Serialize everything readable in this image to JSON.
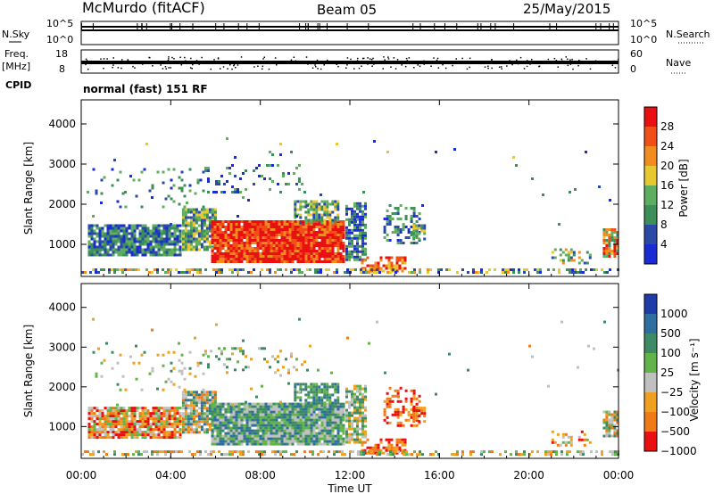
{
  "header": {
    "station": "McMurdo (fitACF)",
    "beam": "Beam 05",
    "date": "25/May/2015"
  },
  "top_panels": {
    "nsky_label": "N.Sky",
    "nsky_top": "10^5",
    "nsky_bottom": "10^0",
    "nsearch_label": "N.Search",
    "nsearch_top": "10^5",
    "nsearch_bottom": "10^0",
    "freq_label": "Freq.",
    "freq_unit": "[MHz]",
    "freq_top": "18",
    "freq_bottom": "8",
    "nave_label": "Nave",
    "nave_top": "60",
    "nave_bottom": "0",
    "cpid_label": "CPID",
    "cpid_value": "normal (fast) 151 RF"
  },
  "colors": {
    "power": [
      "#1a2bd4",
      "#2b4aa8",
      "#3c8f58",
      "#5fae5f",
      "#e8c830",
      "#f08c20",
      "#f05018",
      "#e81010"
    ],
    "velocity": [
      "#1e3ca8",
      "#2e6fa0",
      "#3f8a66",
      "#62b44a",
      "#c0c0c0",
      "#f0a020",
      "#f07a18",
      "#e81010"
    ]
  },
  "chart_data": [
    {
      "type": "heatmap",
      "panel": "power",
      "ylabel": "Slant Range [km]",
      "xlabel": "",
      "x_ticks": [
        "00:00",
        "04:00",
        "08:00",
        "12:00",
        "16:00",
        "20:00",
        "00:00"
      ],
      "xlim": [
        0,
        24
      ],
      "y_ticks": [
        1000,
        2000,
        3000,
        4000
      ],
      "ylim": [
        200,
        4600
      ],
      "colorbar": {
        "label": "Power [dB]",
        "ticks": [
          "4",
          "8",
          "12",
          "16",
          "20",
          "24",
          "28"
        ]
      }
    },
    {
      "type": "heatmap",
      "panel": "velocity",
      "ylabel": "Slant Range [km]",
      "xlabel": "Time UT",
      "x_ticks": [
        "00:00",
        "04:00",
        "08:00",
        "12:00",
        "16:00",
        "20:00",
        "00:00"
      ],
      "xlim": [
        0,
        24
      ],
      "y_ticks": [
        1000,
        2000,
        3000,
        4000
      ],
      "ylim": [
        200,
        4600
      ],
      "colorbar": {
        "label": "Velocity [m s⁻¹]",
        "ticks": [
          "1000",
          "500",
          "100",
          "25",
          "−25",
          "−100",
          "−500",
          "−1000"
        ]
      }
    }
  ]
}
